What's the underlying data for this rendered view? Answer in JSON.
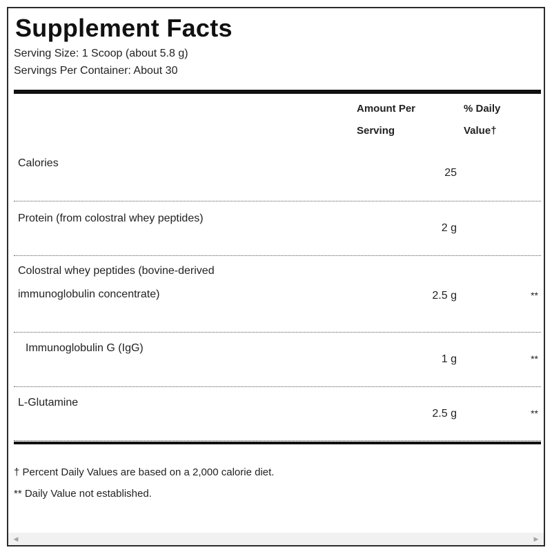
{
  "title": "Supplement Facts",
  "serving_size": "Serving Size: 1 Scoop (about 5.8 g)",
  "servings_per_container": "Servings Per Container: About 30",
  "headers": {
    "amount_line1": "Amount Per",
    "amount_line2": "Serving",
    "dv_line1": "% Daily",
    "dv_line2": "Value†"
  },
  "rows": [
    {
      "name": "Calories",
      "amount": "25",
      "dv": ""
    },
    {
      "name": "Protein (from colostral whey peptides)",
      "amount": "2 g",
      "dv": ""
    },
    {
      "name_line1": "Colostral whey peptides (bovine-derived",
      "name_line2": "immunoglobulin concentrate)",
      "amount": "2.5 g",
      "dv": "**"
    },
    {
      "name": "Immunoglobulin G (IgG)",
      "amount": "1 g",
      "dv": "**"
    },
    {
      "name": "L-Glutamine",
      "amount": "2.5 g",
      "dv": "**"
    }
  ],
  "footnotes": {
    "dagger": "† Percent Daily Values are based on a 2,000 calorie diet.",
    "double_star": "** Daily Value not established."
  },
  "scrollbar": {
    "left_arrow": "◀",
    "right_arrow": "▶"
  }
}
